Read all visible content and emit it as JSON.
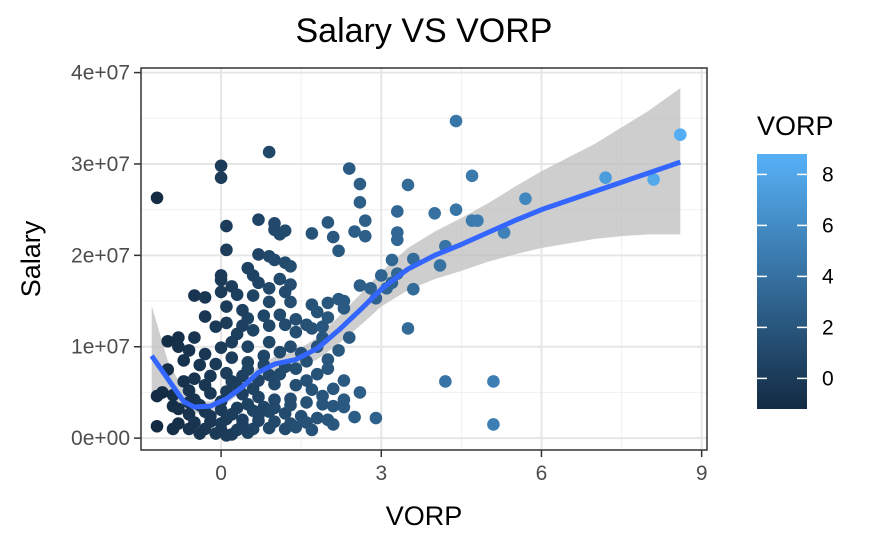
{
  "chart_data": {
    "type": "scatter",
    "title": "Salary VS VORP",
    "xlabel": "VORP",
    "ylabel": "Salary",
    "xlim": [
      -1.5,
      9.1
    ],
    "ylim": [
      -1300000,
      40500000
    ],
    "x_ticks": [
      0,
      3,
      6,
      9
    ],
    "x_tick_labels": [
      "0",
      "3",
      "6",
      "9"
    ],
    "y_ticks": [
      0,
      10000000,
      20000000,
      30000000,
      40000000
    ],
    "y_tick_labels": [
      "0e+00",
      "1e+07",
      "2e+07",
      "3e+07",
      "4e+07"
    ],
    "grid": true,
    "color_scale": {
      "title": "VORP",
      "low": -1.2,
      "high": 8.8,
      "low_color": "#132b43",
      "high_color": "#56b1f7",
      "ticks": [
        0,
        2,
        4,
        6,
        8
      ],
      "tick_labels": [
        "0",
        "2",
        "4",
        "6",
        "8"
      ],
      "legend_position": "right"
    },
    "point_color_note": "points colored by VORP",
    "smooth": {
      "line_color": "#3366ff",
      "band_color": "#bdbdbd",
      "points": [
        {
          "x": -1.3,
          "y": 9000000,
          "lo": 4500000,
          "hi": 14500000
        },
        {
          "x": -1.0,
          "y": 6500000,
          "lo": 4500000,
          "hi": 8500000
        },
        {
          "x": -0.7,
          "y": 4000000,
          "lo": 3000000,
          "hi": 5200000
        },
        {
          "x": -0.5,
          "y": 3400000,
          "lo": 2700000,
          "hi": 4100000
        },
        {
          "x": -0.2,
          "y": 3500000,
          "lo": 3000000,
          "hi": 4000000
        },
        {
          "x": 0.1,
          "y": 4300000,
          "lo": 3800000,
          "hi": 4800000
        },
        {
          "x": 0.4,
          "y": 5600000,
          "lo": 5000000,
          "hi": 6200000
        },
        {
          "x": 0.7,
          "y": 7200000,
          "lo": 6500000,
          "hi": 7900000
        },
        {
          "x": 1.0,
          "y": 8100000,
          "lo": 7300000,
          "hi": 8900000
        },
        {
          "x": 1.4,
          "y": 8600000,
          "lo": 7700000,
          "hi": 9500000
        },
        {
          "x": 1.8,
          "y": 9800000,
          "lo": 8600000,
          "hi": 11000000
        },
        {
          "x": 2.2,
          "y": 11800000,
          "lo": 10300000,
          "hi": 13300000
        },
        {
          "x": 2.6,
          "y": 14000000,
          "lo": 12300000,
          "hi": 15700000
        },
        {
          "x": 3.0,
          "y": 16300000,
          "lo": 14400000,
          "hi": 18200000
        },
        {
          "x": 3.5,
          "y": 18500000,
          "lo": 16200000,
          "hi": 20800000
        },
        {
          "x": 4.0,
          "y": 20000000,
          "lo": 17400000,
          "hi": 22600000
        },
        {
          "x": 4.5,
          "y": 21200000,
          "lo": 18300000,
          "hi": 24100000
        },
        {
          "x": 5.0,
          "y": 22500000,
          "lo": 19300000,
          "hi": 25700000
        },
        {
          "x": 5.5,
          "y": 23800000,
          "lo": 20100000,
          "hi": 27500000
        },
        {
          "x": 6.0,
          "y": 25000000,
          "lo": 20800000,
          "hi": 29200000
        },
        {
          "x": 6.5,
          "y": 26000000,
          "lo": 21300000,
          "hi": 30700000
        },
        {
          "x": 7.0,
          "y": 27000000,
          "lo": 21800000,
          "hi": 32200000
        },
        {
          "x": 7.5,
          "y": 28000000,
          "lo": 22100000,
          "hi": 34000000
        },
        {
          "x": 8.0,
          "y": 29000000,
          "lo": 22300000,
          "hi": 35800000
        },
        {
          "x": 8.6,
          "y": 30200000,
          "lo": 22300000,
          "hi": 38300000
        }
      ]
    },
    "points": [
      {
        "x": -1.2,
        "y": 26300000
      },
      {
        "x": 0.0,
        "y": 29800000
      },
      {
        "x": 0.0,
        "y": 28500000
      },
      {
        "x": 0.9,
        "y": 31300000
      },
      {
        "x": 2.4,
        "y": 29500000
      },
      {
        "x": 4.4,
        "y": 34700000
      },
      {
        "x": 8.6,
        "y": 33200000
      },
      {
        "x": 8.1,
        "y": 28300000
      },
      {
        "x": 7.2,
        "y": 28500000
      },
      {
        "x": 5.7,
        "y": 26200000
      },
      {
        "x": 4.7,
        "y": 28700000
      },
      {
        "x": 4.7,
        "y": 23800000
      },
      {
        "x": 4.8,
        "y": 23800000
      },
      {
        "x": 5.3,
        "y": 22500000
      },
      {
        "x": 4.4,
        "y": 25000000
      },
      {
        "x": 4.0,
        "y": 24600000
      },
      {
        "x": 3.5,
        "y": 27700000
      },
      {
        "x": 3.3,
        "y": 24800000
      },
      {
        "x": 2.6,
        "y": 27800000
      },
      {
        "x": 2.6,
        "y": 25800000
      },
      {
        "x": 2.7,
        "y": 23800000
      },
      {
        "x": 2.5,
        "y": 22600000
      },
      {
        "x": 2.7,
        "y": 22100000
      },
      {
        "x": 2.0,
        "y": 23600000
      },
      {
        "x": 2.1,
        "y": 22000000
      },
      {
        "x": 2.2,
        "y": 20500000
      },
      {
        "x": 1.7,
        "y": 22400000
      },
      {
        "x": 1.2,
        "y": 22700000
      },
      {
        "x": 1.0,
        "y": 23500000
      },
      {
        "x": 1.0,
        "y": 22800000
      },
      {
        "x": 1.1,
        "y": 22300000
      },
      {
        "x": 0.7,
        "y": 23900000
      },
      {
        "x": 0.1,
        "y": 23200000
      },
      {
        "x": 0.1,
        "y": 20600000
      },
      {
        "x": 0.7,
        "y": 20100000
      },
      {
        "x": 0.9,
        "y": 19900000
      },
      {
        "x": 1.0,
        "y": 19500000
      },
      {
        "x": 1.2,
        "y": 19200000
      },
      {
        "x": 1.3,
        "y": 18800000
      },
      {
        "x": 0.5,
        "y": 18600000
      },
      {
        "x": 0.6,
        "y": 17800000
      },
      {
        "x": 0.0,
        "y": 17300000
      },
      {
        "x": 0.0,
        "y": 17800000
      },
      {
        "x": 0.2,
        "y": 16600000
      },
      {
        "x": 0.7,
        "y": 17000000
      },
      {
        "x": 1.1,
        "y": 17400000
      },
      {
        "x": 1.3,
        "y": 16800000
      },
      {
        "x": 1.2,
        "y": 16000000
      },
      {
        "x": 0.9,
        "y": 16400000
      },
      {
        "x": 0.6,
        "y": 15600000
      },
      {
        "x": 0.3,
        "y": 15700000
      },
      {
        "x": -0.5,
        "y": 15600000
      },
      {
        "x": -0.3,
        "y": 15400000
      },
      {
        "x": 0.0,
        "y": 16000000
      },
      {
        "x": 0.9,
        "y": 14900000
      },
      {
        "x": 1.3,
        "y": 14900000
      },
      {
        "x": 1.7,
        "y": 14600000
      },
      {
        "x": 2.0,
        "y": 14800000
      },
      {
        "x": 2.2,
        "y": 15200000
      },
      {
        "x": 2.3,
        "y": 15000000
      },
      {
        "x": 1.8,
        "y": 13800000
      },
      {
        "x": 2.0,
        "y": 13200000
      },
      {
        "x": 2.3,
        "y": 14200000
      },
      {
        "x": 2.8,
        "y": 16400000
      },
      {
        "x": 2.9,
        "y": 15300000
      },
      {
        "x": 3.2,
        "y": 17000000
      },
      {
        "x": 3.0,
        "y": 17800000
      },
      {
        "x": 3.3,
        "y": 18000000
      },
      {
        "x": 3.3,
        "y": 21700000
      },
      {
        "x": 3.3,
        "y": 22500000
      },
      {
        "x": 3.2,
        "y": 19500000
      },
      {
        "x": 3.6,
        "y": 19600000
      },
      {
        "x": 4.2,
        "y": 21000000
      },
      {
        "x": 4.1,
        "y": 18900000
      },
      {
        "x": 3.6,
        "y": 16300000
      },
      {
        "x": 3.1,
        "y": 16400000
      },
      {
        "x": 3.5,
        "y": 12000000
      },
      {
        "x": 2.6,
        "y": 16700000
      },
      {
        "x": 4.2,
        "y": 6200000
      },
      {
        "x": 5.1,
        "y": 6200000
      },
      {
        "x": 5.1,
        "y": 1500000
      },
      {
        "x": 2.9,
        "y": 2200000
      },
      {
        "x": 2.5,
        "y": 2300000
      },
      {
        "x": 2.3,
        "y": 3400000
      },
      {
        "x": 2.3,
        "y": 6300000
      },
      {
        "x": 2.0,
        "y": 7600000
      },
      {
        "x": 2.0,
        "y": 8600000
      },
      {
        "x": 1.8,
        "y": 10000000
      },
      {
        "x": 1.9,
        "y": 11000000
      },
      {
        "x": 1.7,
        "y": 12000000
      },
      {
        "x": 1.4,
        "y": 11600000
      },
      {
        "x": 1.2,
        "y": 12400000
      },
      {
        "x": 1.1,
        "y": 13500000
      },
      {
        "x": 0.8,
        "y": 13400000
      },
      {
        "x": 0.5,
        "y": 13100000
      },
      {
        "x": 0.4,
        "y": 12300000
      },
      {
        "x": 0.1,
        "y": 12600000
      },
      {
        "x": -0.1,
        "y": 12200000
      },
      {
        "x": -0.3,
        "y": 13300000
      },
      {
        "x": -0.5,
        "y": 11000000
      },
      {
        "x": -0.8,
        "y": 11000000
      },
      {
        "x": -1.0,
        "y": 10600000
      },
      {
        "x": -0.8,
        "y": 10000000
      },
      {
        "x": -0.6,
        "y": 9600000
      },
      {
        "x": -0.3,
        "y": 9200000
      },
      {
        "x": 0.0,
        "y": 9900000
      },
      {
        "x": 0.2,
        "y": 10500000
      },
      {
        "x": 0.5,
        "y": 10000000
      },
      {
        "x": 0.9,
        "y": 10500000
      },
      {
        "x": 1.3,
        "y": 10000000
      },
      {
        "x": 1.5,
        "y": 9300000
      },
      {
        "x": 1.6,
        "y": 8400000
      },
      {
        "x": 1.4,
        "y": 7600000
      },
      {
        "x": 1.1,
        "y": 7000000
      },
      {
        "x": 0.8,
        "y": 8000000
      },
      {
        "x": 0.5,
        "y": 8300000
      },
      {
        "x": 0.2,
        "y": 8800000
      },
      {
        "x": -0.1,
        "y": 8100000
      },
      {
        "x": -0.4,
        "y": 8000000
      },
      {
        "x": -0.7,
        "y": 8500000
      },
      {
        "x": -1.0,
        "y": 7500000
      },
      {
        "x": -1.2,
        "y": 4600000
      },
      {
        "x": -1.1,
        "y": 5000000
      },
      {
        "x": -1.2,
        "y": 1300000
      },
      {
        "x": -0.9,
        "y": 3500000
      },
      {
        "x": -0.6,
        "y": 5200000
      },
      {
        "x": -0.5,
        "y": 6500000
      },
      {
        "x": -0.2,
        "y": 6800000
      },
      {
        "x": 0.1,
        "y": 7100000
      },
      {
        "x": 0.4,
        "y": 6800000
      },
      {
        "x": 0.7,
        "y": 6300000
      },
      {
        "x": 1.0,
        "y": 5900000
      },
      {
        "x": 1.4,
        "y": 5800000
      },
      {
        "x": 1.7,
        "y": 5300000
      },
      {
        "x": 2.1,
        "y": 5400000
      },
      {
        "x": 2.3,
        "y": 4200000
      },
      {
        "x": 2.1,
        "y": 3500000
      },
      {
        "x": 1.9,
        "y": 3700000
      },
      {
        "x": 1.6,
        "y": 3900000
      },
      {
        "x": 1.3,
        "y": 4300000
      },
      {
        "x": 1.0,
        "y": 4200000
      },
      {
        "x": 0.7,
        "y": 4500000
      },
      {
        "x": 0.4,
        "y": 4800000
      },
      {
        "x": 0.1,
        "y": 5100000
      },
      {
        "x": -0.2,
        "y": 4900000
      },
      {
        "x": -0.5,
        "y": 4200000
      },
      {
        "x": -0.8,
        "y": 3200000
      },
      {
        "x": -0.6,
        "y": 2600000
      },
      {
        "x": -0.3,
        "y": 2900000
      },
      {
        "x": 0.0,
        "y": 3100000
      },
      {
        "x": 0.3,
        "y": 3300000
      },
      {
        "x": 0.6,
        "y": 3000000
      },
      {
        "x": 0.9,
        "y": 2900000
      },
      {
        "x": 1.2,
        "y": 2700000
      },
      {
        "x": 1.5,
        "y": 2400000
      },
      {
        "x": 1.8,
        "y": 2200000
      },
      {
        "x": 2.0,
        "y": 2000000
      },
      {
        "x": 1.6,
        "y": 1700000
      },
      {
        "x": 1.3,
        "y": 1600000
      },
      {
        "x": 1.0,
        "y": 1800000
      },
      {
        "x": 0.7,
        "y": 1900000
      },
      {
        "x": 0.4,
        "y": 2000000
      },
      {
        "x": 0.1,
        "y": 2100000
      },
      {
        "x": -0.2,
        "y": 1800000
      },
      {
        "x": -0.5,
        "y": 1700000
      },
      {
        "x": -0.8,
        "y": 1600000
      },
      {
        "x": -0.9,
        "y": 1000000
      },
      {
        "x": -0.6,
        "y": 1000000
      },
      {
        "x": -0.3,
        "y": 1000000
      },
      {
        "x": 0.0,
        "y": 900000
      },
      {
        "x": 0.3,
        "y": 900000
      },
      {
        "x": 0.6,
        "y": 1000000
      },
      {
        "x": 0.9,
        "y": 1100000
      },
      {
        "x": 1.2,
        "y": 1000000
      },
      {
        "x": -0.1,
        "y": 500000
      },
      {
        "x": 0.2,
        "y": 400000
      },
      {
        "x": 0.5,
        "y": 600000
      },
      {
        "x": -0.4,
        "y": 500000
      },
      {
        "x": 0.1,
        "y": 300000
      },
      {
        "x": -0.2,
        "y": 2400000
      },
      {
        "x": 0.2,
        "y": 2600000
      },
      {
        "x": 0.5,
        "y": 3700000
      },
      {
        "x": 0.8,
        "y": 3400000
      },
      {
        "x": -0.4,
        "y": 3600000
      },
      {
        "x": 0.0,
        "y": 4000000
      },
      {
        "x": 0.3,
        "y": 5700000
      },
      {
        "x": 0.6,
        "y": 5400000
      },
      {
        "x": 0.9,
        "y": 6900000
      },
      {
        "x": 1.2,
        "y": 7800000
      },
      {
        "x": -0.3,
        "y": 5800000
      },
      {
        "x": -0.7,
        "y": 6200000
      },
      {
        "x": 0.2,
        "y": 6200000
      },
      {
        "x": 0.5,
        "y": 7500000
      },
      {
        "x": 0.8,
        "y": 9000000
      },
      {
        "x": 1.1,
        "y": 9400000
      },
      {
        "x": 0.3,
        "y": 11400000
      },
      {
        "x": 0.6,
        "y": 11800000
      },
      {
        "x": 0.9,
        "y": 12300000
      },
      {
        "x": 0.1,
        "y": 14400000
      },
      {
        "x": 0.4,
        "y": 14000000
      },
      {
        "x": 1.4,
        "y": 13000000
      },
      {
        "x": 1.6,
        "y": 12400000
      },
      {
        "x": 1.9,
        "y": 12200000
      },
      {
        "x": 1.6,
        "y": 6300000
      },
      {
        "x": 1.8,
        "y": 7000000
      },
      {
        "x": 2.2,
        "y": 9600000
      },
      {
        "x": 2.4,
        "y": 11000000
      },
      {
        "x": 1.9,
        "y": 4600000
      },
      {
        "x": 2.6,
        "y": 5000000
      },
      {
        "x": 2.1,
        "y": 1500000
      },
      {
        "x": 1.7,
        "y": 900000
      },
      {
        "x": 1.4,
        "y": 1200000
      },
      {
        "x": 0.0,
        "y": 1600000
      },
      {
        "x": -0.6,
        "y": 3900000
      },
      {
        "x": -0.9,
        "y": 4700000
      },
      {
        "x": 0.4,
        "y": 1500000
      },
      {
        "x": 0.7,
        "y": 2500000
      },
      {
        "x": 1.0,
        "y": 3300000
      },
      {
        "x": 1.3,
        "y": 3600000
      }
    ]
  }
}
